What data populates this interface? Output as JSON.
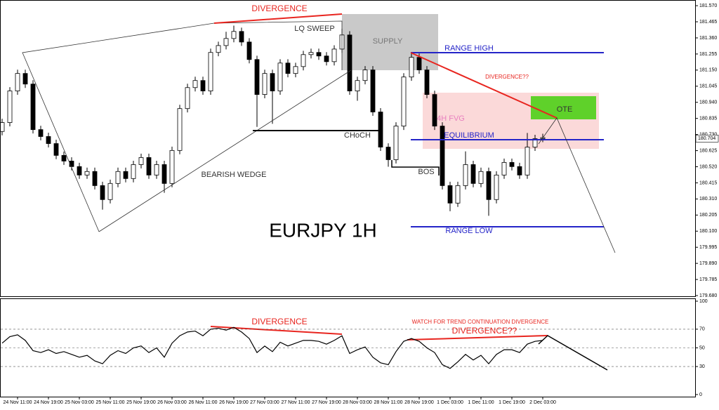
{
  "chart_data": [
    {
      "type": "candlestick",
      "title": "EURJPY 1H",
      "open": [
        180.75,
        180.808,
        181.014,
        181.128,
        181.059,
        180.762,
        180.717,
        180.671,
        180.594,
        180.557,
        180.521,
        180.466,
        180.489,
        180.397,
        180.306,
        180.411,
        180.489,
        180.443,
        180.534,
        180.58,
        180.466,
        180.534,
        180.411,
        180.626,
        180.899,
        181.036,
        181.082,
        181.014,
        181.265,
        181.31,
        181.356,
        181.402,
        181.333,
        181.219,
        180.991,
        181.128,
        181.014,
        181.196,
        181.128,
        181.173,
        181.251,
        181.265,
        181.242,
        181.205,
        181.287,
        181.379,
        181.014,
        181.082,
        181.151,
        180.877,
        180.648,
        180.566,
        180.785,
        181.105,
        181.233,
        181.151,
        180.991,
        180.785,
        180.397,
        180.283,
        180.397,
        180.534,
        180.411,
        180.489,
        180.306,
        180.466,
        180.548,
        180.521,
        180.466,
        180.648,
        180.703
      ],
      "high": [
        180.833,
        181.039,
        181.153,
        181.153,
        181.084,
        180.787,
        180.742,
        180.696,
        180.619,
        180.582,
        180.546,
        180.514,
        180.514,
        180.422,
        180.436,
        180.514,
        180.514,
        180.559,
        180.605,
        180.605,
        180.559,
        180.559,
        180.651,
        180.924,
        181.061,
        181.107,
        181.107,
        181.29,
        181.335,
        181.4,
        181.44,
        181.427,
        181.358,
        181.244,
        181.153,
        181.153,
        181.221,
        181.221,
        181.198,
        181.276,
        181.29,
        181.29,
        181.267,
        181.312,
        181.42,
        181.404,
        181.107,
        181.176,
        181.176,
        180.902,
        180.673,
        180.81,
        181.13,
        181.26,
        181.258,
        181.176,
        181.016,
        180.81,
        180.422,
        180.422,
        180.62,
        180.559,
        180.514,
        180.514,
        180.491,
        180.573,
        180.573,
        180.546,
        180.74,
        180.728,
        180.735
      ],
      "low": [
        180.725,
        180.783,
        180.989,
        181.034,
        180.737,
        180.692,
        180.646,
        180.569,
        180.532,
        180.496,
        180.441,
        180.441,
        180.372,
        180.24,
        180.281,
        180.386,
        180.418,
        180.418,
        180.509,
        180.441,
        180.441,
        180.35,
        180.386,
        180.601,
        180.874,
        181.011,
        180.989,
        180.989,
        181.24,
        181.285,
        181.331,
        181.308,
        181.194,
        180.78,
        180.966,
        180.8,
        180.989,
        181.103,
        181.103,
        181.148,
        181.226,
        181.217,
        181.18,
        181.18,
        181.262,
        180.989,
        180.95,
        181.057,
        180.852,
        180.623,
        180.52,
        180.541,
        180.76,
        181.08,
        181.126,
        180.966,
        180.76,
        180.372,
        180.23,
        180.258,
        180.372,
        180.386,
        180.386,
        180.2,
        180.281,
        180.441,
        180.496,
        180.441,
        180.441,
        180.623,
        180.68
      ],
      "close": [
        180.808,
        181.014,
        181.128,
        181.059,
        180.762,
        180.717,
        180.671,
        180.594,
        180.557,
        180.521,
        180.466,
        180.489,
        180.397,
        180.306,
        180.411,
        180.489,
        180.443,
        180.534,
        180.58,
        180.466,
        180.534,
        180.411,
        180.626,
        180.899,
        181.036,
        181.082,
        181.014,
        181.265,
        181.31,
        181.356,
        181.402,
        181.333,
        181.219,
        180.991,
        181.128,
        181.014,
        181.196,
        181.128,
        181.173,
        181.251,
        181.265,
        181.242,
        181.205,
        181.287,
        181.379,
        181.014,
        181.082,
        181.151,
        180.877,
        180.648,
        180.566,
        180.785,
        181.105,
        181.233,
        181.151,
        180.991,
        180.785,
        180.397,
        180.283,
        180.397,
        180.534,
        180.411,
        180.489,
        180.306,
        180.466,
        180.548,
        180.521,
        180.466,
        180.648,
        180.703,
        180.71
      ],
      "ylim": [
        179.671,
        181.607
      ],
      "yticks": [
        {
          "value": 181.57,
          "label": "181.570"
        },
        181.465,
        {
          "value": 181.36,
          "label": "181.360"
        },
        181.255,
        {
          "value": 181.15,
          "label": "181.150"
        },
        181.045,
        {
          "value": 180.94,
          "label": "180.940"
        },
        180.835,
        {
          "value": 180.73,
          "label": "180.730"
        },
        180.625,
        {
          "value": 180.52,
          "label": "180.520"
        },
        180.415,
        {
          "value": 180.31,
          "label": "180.310"
        },
        180.205,
        {
          "value": 180.1,
          "label": "180.100"
        },
        179.995,
        {
          "value": 179.89,
          "label": "179.890"
        },
        179.785,
        {
          "value": 179.68,
          "label": "179.680"
        }
      ],
      "last_price": 180.704,
      "up_color": "#ffffff",
      "down_color": "#000000",
      "annotations": [
        "DIVERGENCE",
        "LQ SWEEP",
        "SUPPLY",
        "RANGE HIGH",
        "DIVERGENCE??",
        "4H FVG",
        "OTE",
        "EQUILIBRIUM",
        "CHoCH",
        "BOS",
        "BEARISH WEDGE",
        "RANGE LOW"
      ]
    },
    {
      "type": "line",
      "color": "#000000",
      "categories": [
        null,
        null,
        "24 Nov 11:00",
        null,
        null,
        null,
        "24 Nov 19:00",
        null,
        null,
        null,
        "25 Nov 03:00",
        null,
        null,
        null,
        "25 Nov 11:00",
        null,
        null,
        null,
        "25 Nov 19:00",
        null,
        null,
        null,
        "26 Nov 03:00",
        null,
        null,
        null,
        "26 Nov 11:00",
        null,
        null,
        null,
        "26 Nov 19:00",
        null,
        null,
        null,
        "27 Nov 03:00",
        null,
        null,
        null,
        "27 Nov 11:00",
        null,
        null,
        null,
        "27 Nov 19:00",
        null,
        null,
        null,
        "28 Nov 03:00",
        null,
        null,
        null,
        "28 Nov 11:00",
        null,
        null,
        null,
        "28 Nov 19:00",
        null,
        null,
        null,
        "1 Dec 03:00",
        null,
        null,
        null,
        "1 Dec 11:00",
        null,
        null,
        null,
        "1 Dec 19:00",
        null,
        null,
        null,
        "2 Dec 03:00"
      ],
      "values": [
        55,
        62,
        64,
        58,
        47,
        45,
        48,
        44,
        46,
        43,
        40,
        42,
        36,
        33,
        42,
        47,
        44,
        50,
        52,
        45,
        50,
        40,
        55,
        63,
        67,
        68,
        63,
        70,
        71,
        69,
        72,
        67,
        60,
        45,
        52,
        46,
        56,
        52,
        55,
        58,
        58,
        57,
        54,
        58,
        63,
        44,
        48,
        51,
        40,
        34,
        32,
        46,
        57,
        60,
        57,
        50,
        45,
        32,
        28,
        35,
        43,
        37,
        42,
        33,
        43,
        48,
        48,
        45,
        54,
        57,
        58
      ],
      "ylim": [
        0,
        100
      ],
      "yticks": [
        0,
        30,
        50,
        70,
        100
      ],
      "grid": true,
      "annotations": [
        "DIVERGENCE",
        "WATCH FOR TREND CONTINUATION DIVERGENCE",
        "DIVERGENCE??"
      ]
    }
  ]
}
